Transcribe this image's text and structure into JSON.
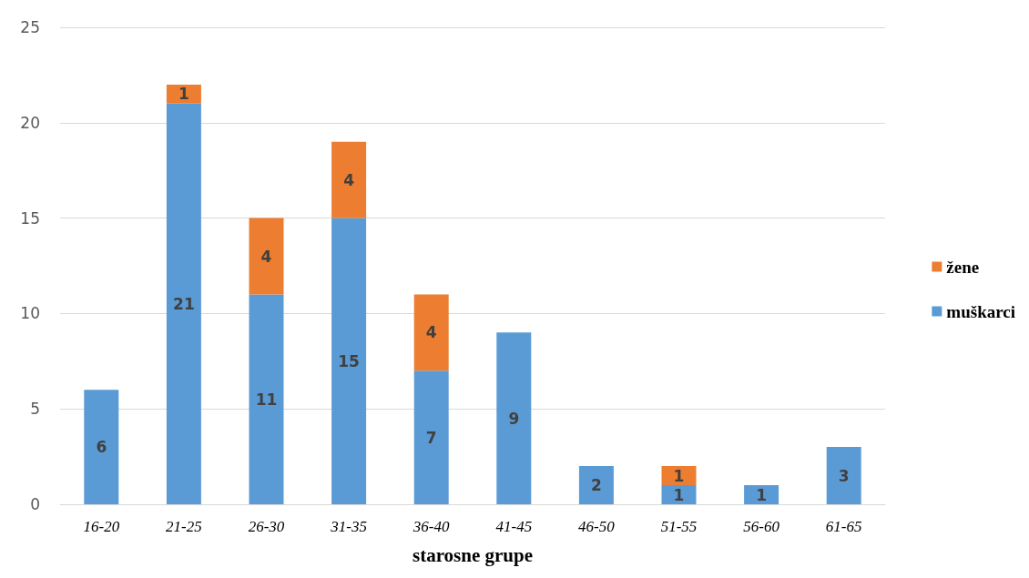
{
  "chart_data": {
    "type": "bar",
    "stacked": true,
    "xlabel": "starosne grupe",
    "categories": [
      "16-20",
      "21-25",
      "26-30",
      "31-35",
      "36-40",
      "41-45",
      "46-50",
      "51-55",
      "56-60",
      "61-65"
    ],
    "series": [
      {
        "name": "muškarci",
        "color": "#5b9bd5",
        "values": [
          6,
          21,
          11,
          15,
          7,
          9,
          2,
          1,
          1,
          3
        ]
      },
      {
        "name": "žene",
        "color": "#ed7d31",
        "values": [
          null,
          1,
          4,
          4,
          4,
          null,
          null,
          1,
          null,
          null
        ]
      }
    ],
    "ylim": [
      0,
      25
    ],
    "yticks": [
      0,
      5,
      10,
      15,
      20,
      25
    ],
    "grid": "y",
    "legend": "right",
    "data_labels": true
  }
}
